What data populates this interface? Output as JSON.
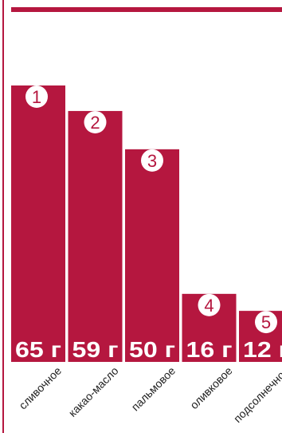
{
  "colors": {
    "bar": "#b5173f",
    "rank_badge": "#ffffff",
    "rank_text": "#b5173f",
    "value_text": "#ffffff",
    "frame": "#b5173f"
  },
  "chart_data": {
    "type": "bar",
    "categories": [
      "сливочное",
      "какао-масло",
      "пальмовое",
      "оливковое",
      "подсолнечное"
    ],
    "values": [
      65,
      59,
      50,
      16,
      12
    ],
    "ranks": [
      "1",
      "2",
      "3",
      "4",
      "5"
    ],
    "value_labels": [
      "65 г",
      "59 г",
      "50 г",
      "16 г",
      "12 г"
    ],
    "unit": "г",
    "title": "",
    "xlabel": "",
    "ylabel": "",
    "ylim": [
      0,
      65
    ],
    "grid": false,
    "legend": "none"
  }
}
